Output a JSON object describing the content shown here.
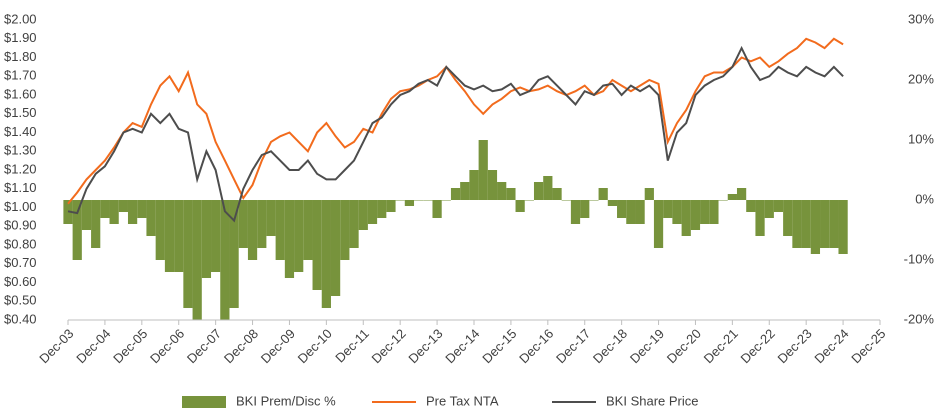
{
  "chart_data": {
    "type": "bar-line",
    "categories": [
      "Dec-03",
      null,
      null,
      null,
      "Dec-04",
      null,
      null,
      null,
      "Dec-05",
      null,
      null,
      null,
      "Dec-06",
      null,
      null,
      null,
      "Dec-07",
      null,
      null,
      null,
      "Dec-08",
      null,
      null,
      null,
      "Dec-09",
      null,
      null,
      null,
      "Dec-10",
      null,
      null,
      null,
      "Dec-11",
      null,
      null,
      null,
      "Dec-12",
      null,
      null,
      null,
      "Dec-13",
      null,
      null,
      null,
      "Dec-14",
      null,
      null,
      null,
      "Dec-15",
      null,
      null,
      null,
      "Dec-16",
      null,
      null,
      null,
      "Dec-17",
      null,
      null,
      null,
      "Dec-18",
      null,
      null,
      null,
      "Dec-19",
      null,
      null,
      null,
      "Dec-20",
      null,
      null,
      null,
      "Dec-21",
      null,
      null,
      null,
      "Dec-22",
      null,
      null,
      null,
      "Dec-23",
      null,
      null,
      null,
      "Dec-24",
      null,
      null,
      null,
      "Dec-25"
    ],
    "series": [
      {
        "name": "BKI Prem/Disc %",
        "type": "bar",
        "axis": "y2",
        "color": "#77933c",
        "values": [
          -4,
          -10,
          -5,
          -8,
          -3,
          -4,
          -2,
          -4,
          -3,
          -6,
          -10,
          -12,
          -12,
          -18,
          -20,
          -13,
          -12,
          -20,
          -18,
          -8,
          -10,
          -8,
          -6,
          -10,
          -13,
          -12,
          -10,
          -15,
          -18,
          -16,
          -10,
          -8,
          -5,
          -4,
          -3,
          -2,
          0,
          -1,
          0,
          0,
          -3,
          0,
          2,
          3,
          5,
          10,
          5,
          3,
          2,
          -2,
          0,
          3,
          4,
          2,
          0,
          -4,
          -3,
          0,
          2,
          -1,
          -3,
          -4,
          -4,
          2,
          -8,
          -3,
          -4,
          -6,
          -5,
          -4,
          -4,
          0,
          1,
          2,
          -2,
          -6,
          -3,
          -2,
          -6,
          -8,
          -8,
          -9,
          -8,
          -8,
          -9,
          null,
          null,
          null,
          null
        ]
      },
      {
        "name": "Pre Tax NTA",
        "type": "line",
        "color": "#f26b1d",
        "values": [
          1.02,
          1.08,
          1.15,
          1.2,
          1.25,
          1.32,
          1.4,
          1.45,
          1.43,
          1.55,
          1.65,
          1.7,
          1.62,
          1.72,
          1.55,
          1.5,
          1.35,
          1.25,
          1.15,
          1.05,
          1.12,
          1.25,
          1.35,
          1.38,
          1.4,
          1.35,
          1.3,
          1.4,
          1.45,
          1.38,
          1.32,
          1.35,
          1.42,
          1.4,
          1.5,
          1.58,
          1.62,
          1.63,
          1.65,
          1.68,
          1.7,
          1.75,
          1.68,
          1.62,
          1.55,
          1.5,
          1.55,
          1.58,
          1.62,
          1.64,
          1.62,
          1.63,
          1.65,
          1.62,
          1.6,
          1.62,
          1.65,
          1.6,
          1.62,
          1.68,
          1.65,
          1.62,
          1.65,
          1.68,
          1.66,
          1.35,
          1.45,
          1.52,
          1.62,
          1.7,
          1.72,
          1.72,
          1.75,
          1.8,
          1.78,
          1.8,
          1.75,
          1.78,
          1.82,
          1.85,
          1.9,
          1.88,
          1.85,
          1.9,
          1.87,
          null,
          null,
          null,
          null
        ]
      },
      {
        "name": "BKI Share Price",
        "type": "line",
        "color": "#4d4d4d",
        "values": [
          0.98,
          0.97,
          1.1,
          1.18,
          1.22,
          1.3,
          1.4,
          1.42,
          1.4,
          1.5,
          1.45,
          1.5,
          1.42,
          1.4,
          1.15,
          1.3,
          1.2,
          0.98,
          0.93,
          1.1,
          1.2,
          1.28,
          1.3,
          1.25,
          1.2,
          1.2,
          1.25,
          1.18,
          1.15,
          1.15,
          1.2,
          1.25,
          1.35,
          1.45,
          1.48,
          1.55,
          1.6,
          1.62,
          1.66,
          1.68,
          1.65,
          1.75,
          1.7,
          1.65,
          1.63,
          1.65,
          1.62,
          1.63,
          1.66,
          1.6,
          1.62,
          1.68,
          1.7,
          1.65,
          1.6,
          1.55,
          1.62,
          1.6,
          1.65,
          1.66,
          1.6,
          1.65,
          1.62,
          1.65,
          1.6,
          1.25,
          1.4,
          1.45,
          1.6,
          1.65,
          1.68,
          1.7,
          1.75,
          1.85,
          1.75,
          1.68,
          1.7,
          1.75,
          1.72,
          1.7,
          1.75,
          1.72,
          1.7,
          1.75,
          1.7,
          null,
          null,
          null,
          null
        ]
      }
    ],
    "ylim": [
      0.4,
      2.0
    ],
    "yticks": [
      {
        "value": 0.4,
        "label": "$0.40"
      },
      {
        "value": 0.5,
        "label": "$0.50"
      },
      {
        "value": 0.6,
        "label": "$0.60"
      },
      {
        "value": 0.7,
        "label": "$0.70"
      },
      {
        "value": 0.8,
        "label": "$0.80"
      },
      {
        "value": 0.9,
        "label": "$0.90"
      },
      {
        "value": 1.0,
        "label": "$1.00"
      },
      {
        "value": 1.1,
        "label": "$1.10"
      },
      {
        "value": 1.2,
        "label": "$1.20"
      },
      {
        "value": 1.3,
        "label": "$1.30"
      },
      {
        "value": 1.4,
        "label": "$1.40"
      },
      {
        "value": 1.5,
        "label": "$1.50"
      },
      {
        "value": 1.6,
        "label": "$1.60"
      },
      {
        "value": 1.7,
        "label": "$1.70"
      },
      {
        "value": 1.8,
        "label": "$1.80"
      },
      {
        "value": 1.9,
        "label": "$1.90"
      },
      {
        "value": 2.0,
        "label": "$2.00"
      }
    ],
    "y2lim": [
      -20,
      30
    ],
    "y2ticks": [
      {
        "value": -20,
        "label": "-20%"
      },
      {
        "value": -10,
        "label": "-10%"
      },
      {
        "value": 0,
        "label": "0%"
      },
      {
        "value": 10,
        "label": "10%"
      },
      {
        "value": 20,
        "label": "20%"
      },
      {
        "value": 30,
        "label": "30%"
      }
    ],
    "grid": false,
    "legend": "bottom"
  }
}
